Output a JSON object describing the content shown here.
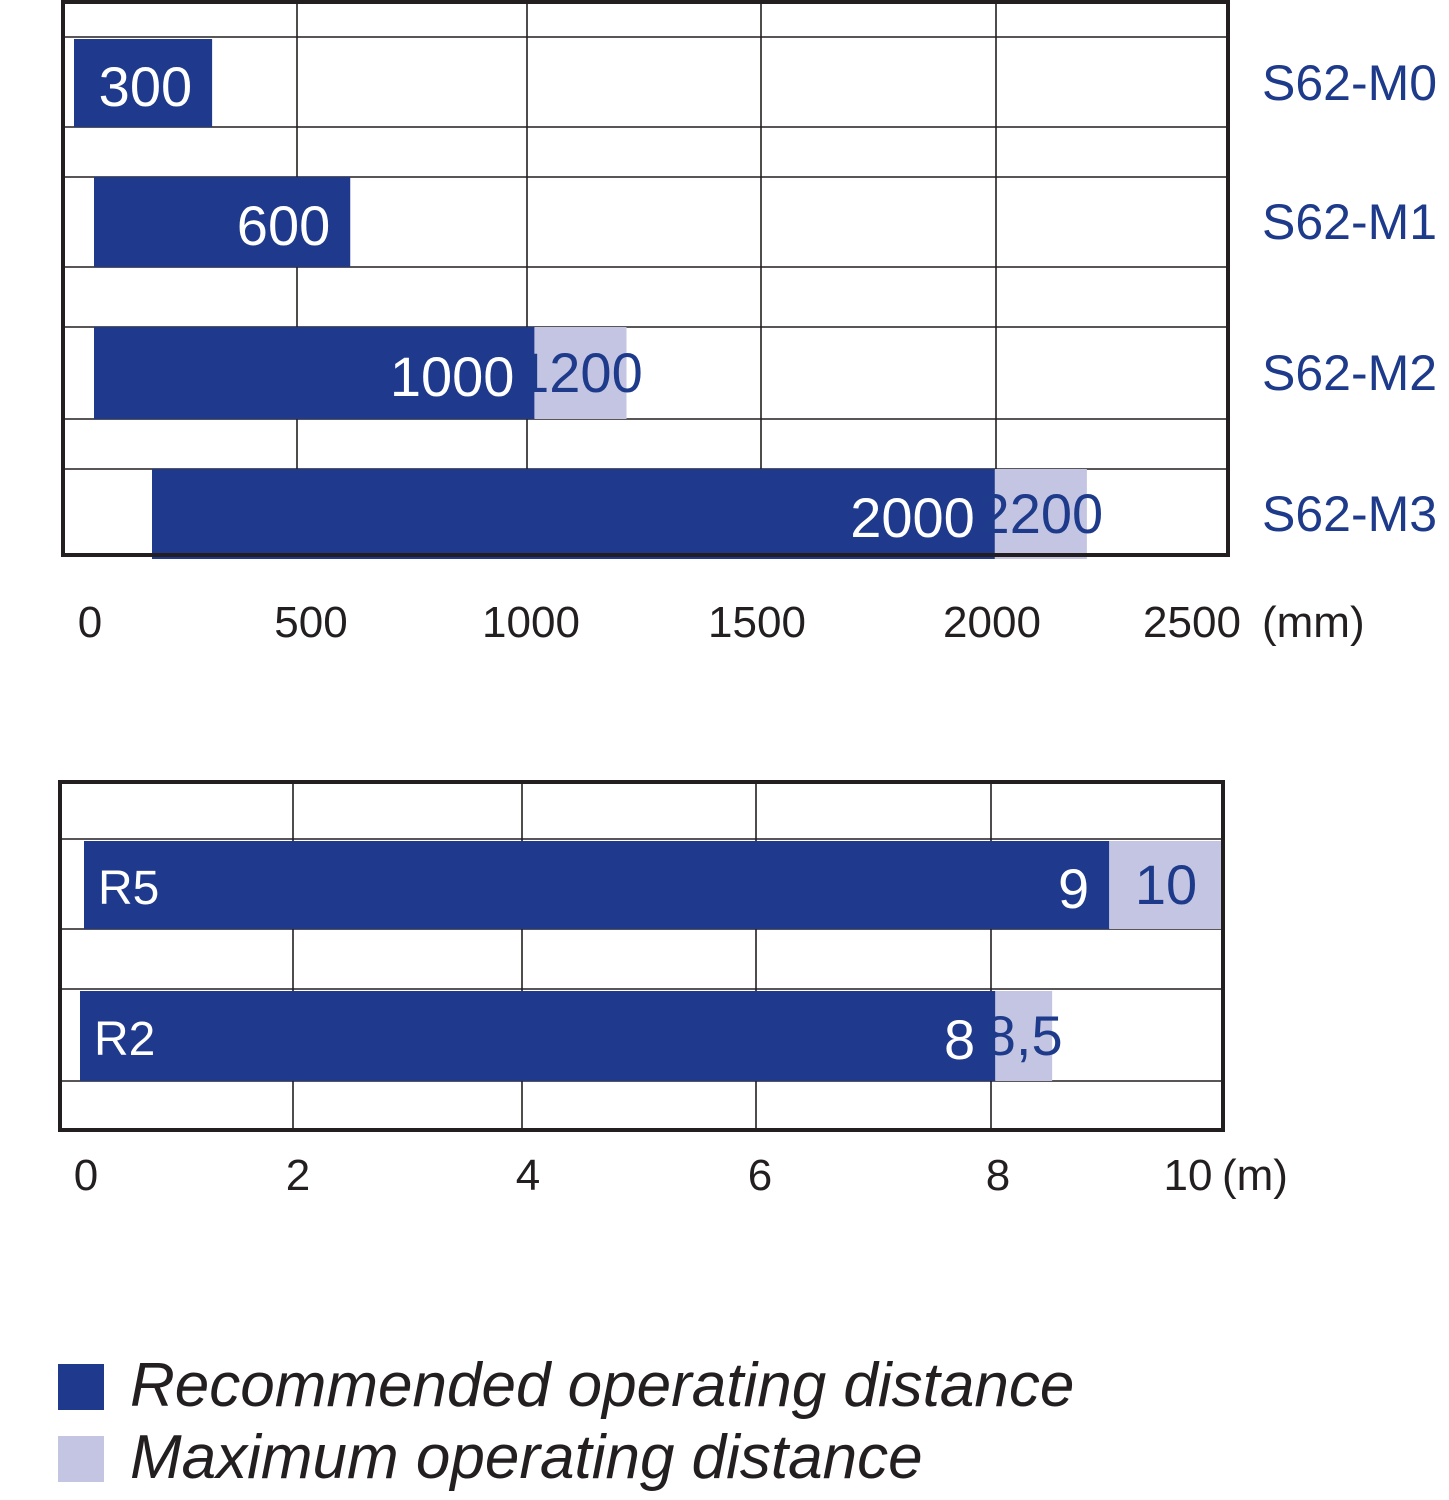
{
  "colors": {
    "recommended": "#1f3a8c",
    "maximum": "#c3c5e2",
    "grid": "#231f20",
    "category_text": "#1e3a8a"
  },
  "chart_data": [
    {
      "type": "bar",
      "orientation": "horizontal",
      "categories": [
        "S62-M0",
        "S62-M1",
        "S62-M2",
        "S62-M3"
      ],
      "series": [
        {
          "name": "Recommended operating distance",
          "values": [
            300,
            600,
            1000,
            2000
          ],
          "labels": [
            "300",
            "600",
            "1000",
            "2000"
          ]
        },
        {
          "name": "Maximum operating distance",
          "values": [
            300,
            600,
            1200,
            2200
          ],
          "labels": [
            "",
            "",
            "1200",
            "2200"
          ]
        }
      ],
      "xlim": [
        0,
        2500
      ],
      "x_ticks": [
        "0",
        "500",
        "1000",
        "1500",
        "2000",
        "2500"
      ],
      "x_unit": "(mm)",
      "grid": true
    },
    {
      "type": "bar",
      "orientation": "horizontal",
      "categories": [
        "R5",
        "R2"
      ],
      "series": [
        {
          "name": "Recommended operating distance",
          "values": [
            9,
            8
          ],
          "labels": [
            "9",
            "8"
          ]
        },
        {
          "name": "Maximum operating distance",
          "values": [
            10,
            8.5
          ],
          "labels": [
            "10",
            "8,5"
          ]
        }
      ],
      "xlim": [
        0,
        10
      ],
      "x_ticks": [
        "0",
        "2",
        "4",
        "6",
        "8",
        "10"
      ],
      "x_unit": "(m)",
      "grid": true
    }
  ],
  "legend": {
    "recommended": "Recommended operating distance",
    "maximum": "Maximum operating distance"
  }
}
